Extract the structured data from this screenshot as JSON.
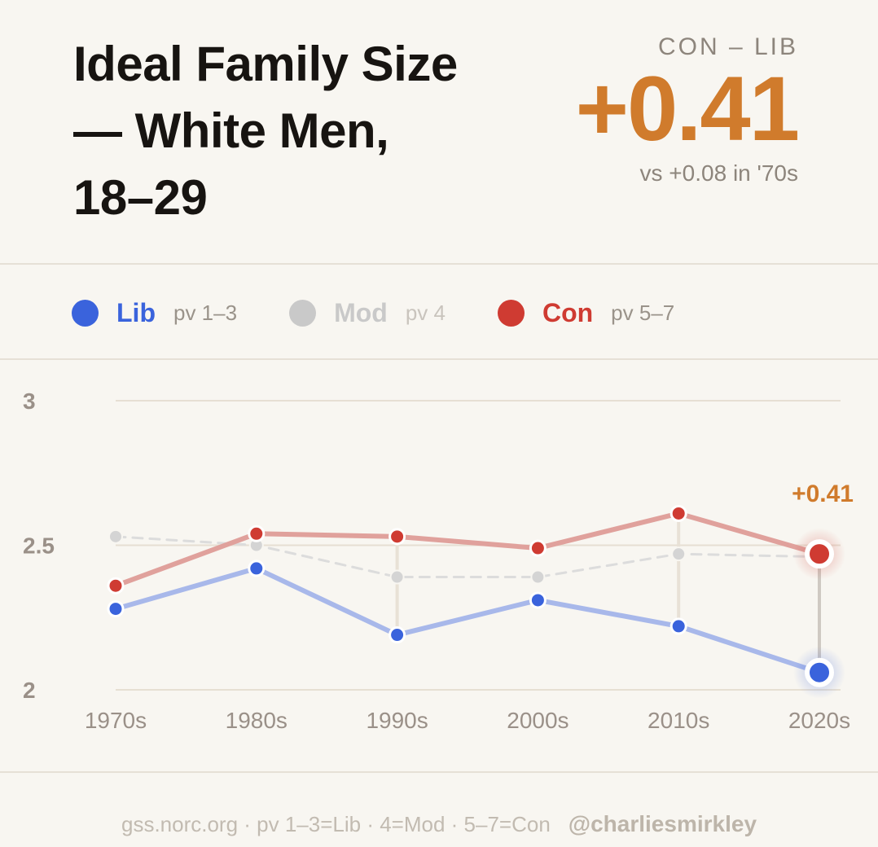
{
  "header": {
    "title_lines": [
      "Ideal Family Size",
      "— White Men,",
      "18–29"
    ],
    "diff_label": "CON – LIB",
    "diff_value": "+0.41",
    "diff_sub": "vs +0.08 in '70s"
  },
  "legend": [
    {
      "name": "Lib",
      "range": "pv 1–3",
      "color": "#3a63dc"
    },
    {
      "name": "Mod",
      "range": "pv 4",
      "color": "#c9c9c9"
    },
    {
      "name": "Con",
      "range": "pv 5–7",
      "color": "#cf3b32"
    }
  ],
  "chart_data": {
    "type": "line",
    "categories": [
      "1970s",
      "1980s",
      "1990s",
      "2000s",
      "2010s",
      "2020s"
    ],
    "ylim": [
      2,
      3
    ],
    "yticks": [
      "2",
      "2.5",
      "3"
    ],
    "series": [
      {
        "name": "Lib",
        "values": [
          2.28,
          2.42,
          2.19,
          2.31,
          2.22,
          2.06
        ],
        "color": "#3a63dc"
      },
      {
        "name": "Mod",
        "values": [
          2.53,
          2.5,
          2.39,
          2.39,
          2.47,
          2.46
        ],
        "color": "#c9c9c9"
      },
      {
        "name": "Con",
        "values": [
          2.36,
          2.54,
          2.53,
          2.49,
          2.61,
          2.47
        ],
        "color": "#cf3b32"
      }
    ],
    "annotation": "+0.41",
    "annotation_color": "#d07b2c",
    "grid": true
  },
  "footer": {
    "source": "gss.norc.org · pv 1–3=Lib · 4=Mod · 5–7=Con",
    "handle": "@charliesmirkley"
  }
}
